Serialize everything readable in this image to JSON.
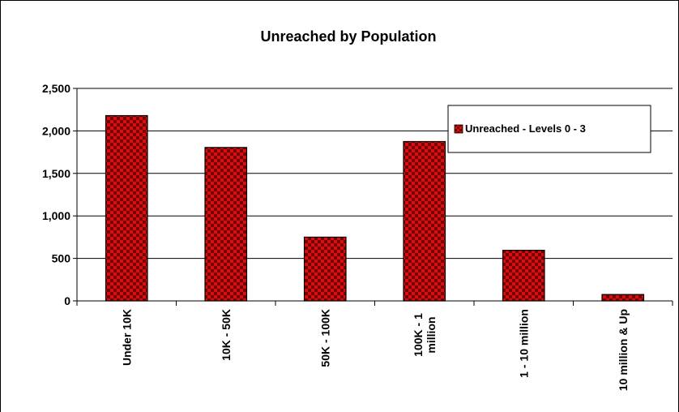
{
  "chart_data": {
    "type": "bar",
    "title": "Unreached by Population",
    "categories": [
      [
        "Under 10K"
      ],
      [
        "10K - 50K"
      ],
      [
        "50K - 100K"
      ],
      [
        "100K - 1",
        "million"
      ],
      [
        "1 - 10 million"
      ],
      [
        "10 million & Up"
      ]
    ],
    "series": [
      {
        "name": "Unreached - Levels 0 - 3",
        "values": [
          2180,
          1805,
          750,
          1875,
          595,
          75
        ]
      }
    ],
    "ylim": [
      0,
      2500
    ],
    "yticks": [
      "0",
      "500",
      "1,000",
      "1,500",
      "2,000",
      "2,500"
    ],
    "ytick_values": [
      0,
      500,
      1000,
      1500,
      2000,
      2500
    ],
    "grid": true,
    "legend_position": "top-right",
    "colors": {
      "bar_fill": "#d41010",
      "bar_check": "#7a0000",
      "grid": "#000000"
    }
  }
}
